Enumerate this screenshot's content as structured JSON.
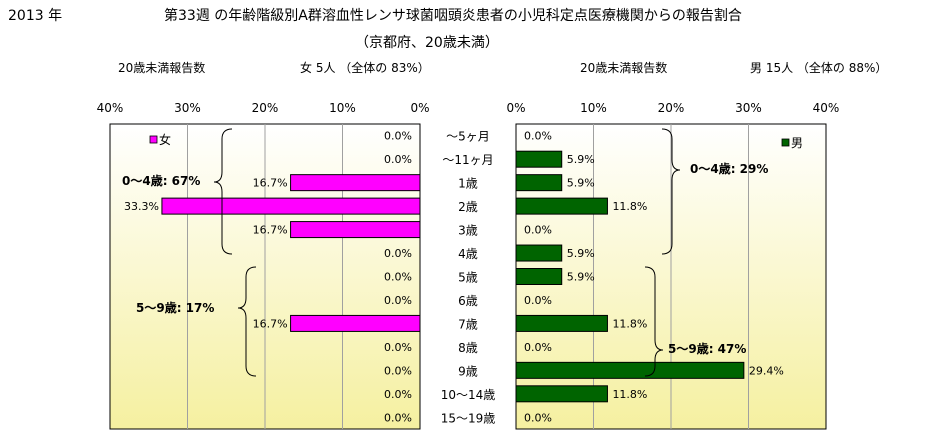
{
  "header": {
    "year": "2013 年",
    "title_line1": "第33週 の年齢階級別A群溶血性レンサ球菌咽頭炎患者の小児科定点医療機関からの報告割合",
    "title_line2": "（京都府、20歳未満）"
  },
  "left_panel": {
    "count_label": "20歳未満報告数",
    "summary": "女 5人 （全体の 83%）",
    "legend": "女",
    "axis_ticks": [
      "40%",
      "30%",
      "20%",
      "10%",
      "0%"
    ],
    "group1_label": "0～4歳: 67%",
    "group2_label": "5～9歳: 17%"
  },
  "right_panel": {
    "count_label": "20歳未満報告数",
    "summary": "男 15人 （全体の 88%）",
    "legend": "男",
    "axis_ticks": [
      "0%",
      "10%",
      "20%",
      "30%",
      "40%"
    ],
    "group1_label": "0～4歳: 29%",
    "group2_label": "5～9歳: 47%"
  },
  "colors": {
    "female": "#ff00ff",
    "male": "#006400",
    "plot_top": "#ffffff",
    "plot_bottom": "#f5f0a0"
  },
  "chart_data": {
    "type": "bar",
    "orientation": "horizontal",
    "xlim": [
      0,
      40
    ],
    "unit": "%",
    "categories": [
      "～5ヶ月",
      "～11ヶ月",
      "1歳",
      "2歳",
      "3歳",
      "4歳",
      "5歳",
      "6歳",
      "7歳",
      "8歳",
      "9歳",
      "10～14歳",
      "15～19歳"
    ],
    "series": [
      {
        "name": "女",
        "values": [
          0.0,
          0.0,
          16.7,
          33.3,
          16.7,
          0.0,
          0.0,
          0.0,
          16.7,
          0.0,
          0.0,
          0.0,
          0.0
        ],
        "labels": [
          "0.0%",
          "0.0%",
          "16.7%",
          "33.3%",
          "16.7%",
          "0.0%",
          "0.0%",
          "0.0%",
          "16.7%",
          "0.0%",
          "0.0%",
          "0.0%",
          "0.0%"
        ]
      },
      {
        "name": "男",
        "values": [
          0.0,
          5.9,
          5.9,
          11.8,
          0.0,
          5.9,
          5.9,
          0.0,
          11.8,
          0.0,
          29.4,
          11.8,
          0.0
        ],
        "labels": [
          "0.0%",
          "5.9%",
          "5.9%",
          "11.8%",
          "0.0%",
          "5.9%",
          "5.9%",
          "0.0%",
          "11.8%",
          "0.0%",
          "29.4%",
          "11.8%",
          "0.0%"
        ]
      }
    ]
  }
}
